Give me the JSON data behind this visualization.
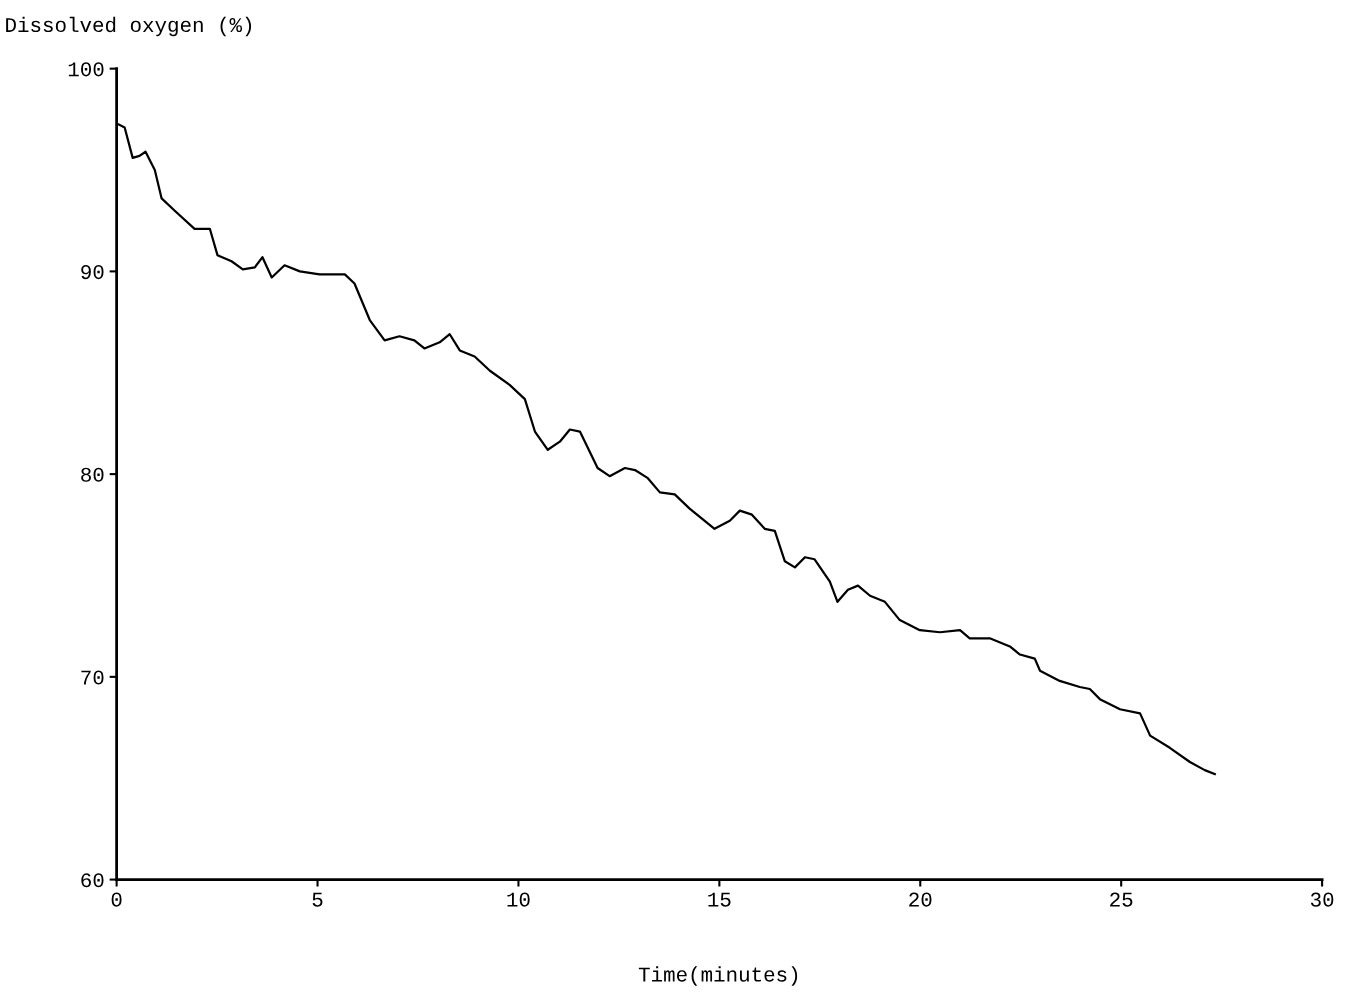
{
  "chart_data": {
    "type": "line",
    "xlabel": "Time(minutes)",
    "ylabel": "Dissolved oxygen (%)",
    "xlim": [
      0,
      30
    ],
    "ylim": [
      60,
      100
    ],
    "xticks": [
      0,
      5,
      10,
      15,
      20,
      25,
      30
    ],
    "yticks": [
      60,
      70,
      80,
      90,
      100
    ],
    "grid": false,
    "legend": false,
    "marker": "none",
    "line_style": "solid",
    "series": [
      {
        "color": "#000000",
        "x": [
          0,
          0.2,
          0.4,
          0.57,
          0.72,
          0.95,
          1.12,
          1.44,
          1.94,
          2.32,
          2.51,
          2.86,
          3.14,
          3.44,
          3.63,
          3.86,
          4.18,
          4.56,
          5.05,
          5.68,
          5.92,
          6.3,
          6.67,
          7.04,
          7.41,
          7.66,
          8.04,
          8.29,
          8.54,
          8.91,
          9.29,
          9.78,
          10.16,
          10.41,
          10.73,
          11.03,
          11.28,
          11.53,
          11.97,
          12.27,
          12.65,
          12.9,
          13.22,
          13.52,
          13.89,
          14.26,
          14.88,
          15.26,
          15.51,
          15.81,
          16.13,
          16.38,
          16.63,
          16.88,
          17.13,
          17.37,
          17.75,
          17.94,
          18.2,
          18.45,
          18.75,
          19.12,
          19.49,
          19.99,
          20.49,
          20.99,
          21.23,
          21.73,
          22.23,
          22.48,
          22.85,
          22.98,
          23.47,
          23.97,
          24.22,
          24.47,
          24.97,
          25.47,
          25.72,
          26.21,
          26.71,
          27.08,
          27.33
        ],
        "values": [
          97.3,
          97.1,
          95.6,
          95.7,
          95.9,
          95.0,
          93.6,
          93.0,
          92.1,
          92.1,
          90.8,
          90.5,
          90.1,
          90.2,
          90.7,
          89.7,
          90.3,
          90.0,
          89.85,
          89.85,
          89.4,
          87.6,
          86.6,
          86.8,
          86.6,
          86.2,
          86.5,
          86.9,
          86.1,
          85.8,
          85.1,
          84.4,
          83.7,
          82.1,
          81.2,
          81.6,
          82.2,
          82.1,
          80.3,
          79.9,
          80.3,
          80.2,
          79.8,
          79.1,
          79.0,
          78.3,
          77.3,
          77.7,
          78.2,
          78.0,
          77.3,
          77.2,
          75.7,
          75.4,
          75.9,
          75.8,
          74.7,
          73.7,
          74.3,
          74.5,
          74.0,
          73.7,
          72.8,
          72.3,
          72.2,
          72.3,
          71.9,
          71.9,
          71.5,
          71.1,
          70.9,
          70.3,
          69.8,
          69.5,
          69.4,
          68.9,
          68.4,
          68.2,
          67.1,
          66.5,
          65.8,
          65.4,
          65.2
        ]
      }
    ]
  }
}
